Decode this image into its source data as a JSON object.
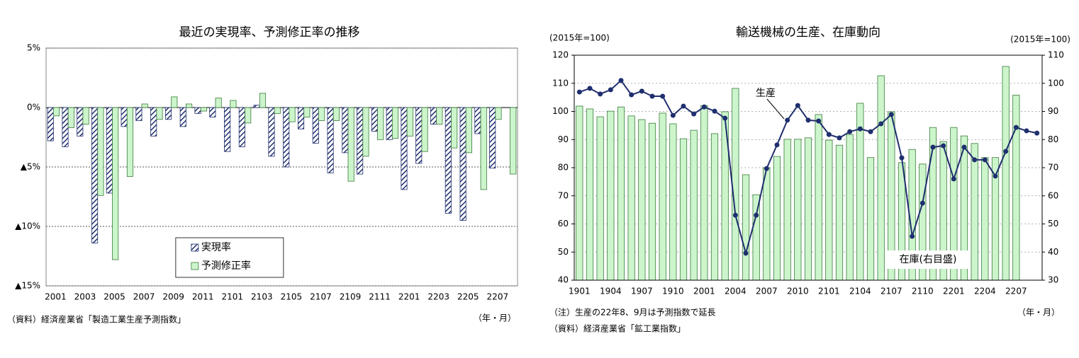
{
  "chart_data": [
    {
      "type": "bar",
      "title": "最近の実現率、予測修正率の推移",
      "categories": [
        "2001",
        null,
        "2003",
        null,
        "2005",
        null,
        "2007",
        null,
        "2009",
        null,
        "2011",
        null,
        "2101",
        null,
        "2103",
        null,
        "2105",
        null,
        "2107",
        null,
        "2109",
        null,
        "2111",
        null,
        "2201",
        null,
        "2203",
        null,
        "2205",
        null,
        "2207",
        null
      ],
      "series": [
        {
          "name": "実現率",
          "color": "#1f2f6e",
          "pattern": "hatch",
          "values": [
            -2.8,
            -3.3,
            -2.4,
            -11.4,
            -7.2,
            -1.6,
            -1.1,
            -2.4,
            -1.0,
            -1.6,
            -0.5,
            -0.8,
            -3.7,
            -3.3,
            0.2,
            -4.1,
            -5.0,
            -1.8,
            -3.0,
            -5.5,
            -3.8,
            -5.6,
            -2.0,
            -2.7,
            -6.9,
            -4.7,
            -1.4,
            -8.9,
            -9.5,
            -2.2,
            -5.1,
            null
          ]
        },
        {
          "name": "予測修正率",
          "color": "#ccf5cc",
          "values": [
            -0.7,
            -1.7,
            -1.4,
            -7.4,
            -12.8,
            -5.8,
            0.3,
            -1.0,
            0.9,
            0.3,
            -0.3,
            0.8,
            0.6,
            -1.3,
            1.2,
            -0.5,
            -1.2,
            -0.8,
            -1.1,
            -1.1,
            -6.2,
            -4.1,
            -2.7,
            -2.6,
            -2.4,
            -3.7,
            -1.4,
            -3.4,
            -3.8,
            -6.9,
            -1.0,
            -5.6
          ]
        }
      ],
      "ylim": [
        -15,
        5
      ],
      "yticks": [
        {
          "value": 5,
          "label": "5%"
        },
        {
          "value": 0,
          "label": "0%"
        },
        {
          "value": -5,
          "label": "▲5%"
        },
        {
          "value": -10,
          "label": "▲10%"
        },
        {
          "value": -15,
          "label": "▲15%"
        }
      ],
      "grid": true,
      "legend": "bottom-center",
      "source": "（資料）経済産業省「製造工業生産予測指数」",
      "x_unit": "（年・月）"
    },
    {
      "type": "combo",
      "title": "輸送機械の生産、在庫動向",
      "y_label": "(2015年=100)",
      "y2_label": "(2015年=100)",
      "categories": [
        "1901",
        null,
        null,
        "1904",
        null,
        null,
        "1907",
        null,
        null,
        "1910",
        null,
        null,
        "2001",
        null,
        null,
        "2004",
        null,
        null,
        "2007",
        null,
        null,
        "2010",
        null,
        null,
        "2101",
        null,
        null,
        "2104",
        null,
        null,
        "2107",
        null,
        null,
        "2110",
        null,
        null,
        "2201",
        null,
        null,
        "2204",
        null,
        null,
        "2207",
        null,
        null
      ],
      "series": [
        {
          "name": "在庫(右目盛)",
          "type": "bar",
          "axis": "y2",
          "color": "#ccf5cc",
          "values": [
            91.9,
            90.9,
            88.1,
            90.1,
            91.6,
            88.4,
            87.1,
            85.8,
            89.4,
            85.6,
            80.3,
            83.3,
            92.1,
            82.1,
            89.9,
            98.2,
            67.5,
            60.4,
            70.0,
            74.0,
            80.1,
            80.1,
            80.6,
            88.9,
            79.8,
            78.0,
            81.8,
            92.9,
            73.6,
            102.7,
            89.9,
            71.8,
            76.5,
            71.3,
            84.3,
            79.3,
            84.3,
            81.3,
            78.6,
            73.6,
            73.6,
            106.0,
            95.8,
            null,
            null
          ]
        },
        {
          "name": "生産",
          "type": "line",
          "color": "#1f2f6e",
          "values": [
            106.9,
            108.2,
            106.2,
            107.7,
            111.0,
            105.9,
            107.2,
            105.4,
            105.4,
            98.6,
            101.9,
            99.1,
            101.6,
            100.1,
            97.6,
            63.1,
            49.6,
            63.1,
            79.7,
            88.1,
            96.9,
            102.1,
            96.9,
            96.6,
            91.8,
            90.6,
            92.8,
            93.8,
            92.8,
            95.6,
            98.9,
            83.5,
            55.6,
            67.4,
            87.3,
            87.8,
            76.0,
            87.3,
            82.8,
            82.8,
            77.0,
            85.8,
            94.3,
            93.1,
            92.3
          ]
        }
      ],
      "ylim": [
        40,
        120
      ],
      "yticks": [
        40,
        50,
        60,
        70,
        80,
        90,
        100,
        110,
        120
      ],
      "y2lim": [
        30,
        110
      ],
      "y2ticks": [
        30,
        40,
        50,
        60,
        70,
        80,
        90,
        100,
        110
      ],
      "grid": true,
      "note": "（注）生産の22年8、9月は予測指数で延長",
      "source": "（資料）経済産業省「鉱工業指数」",
      "x_unit": "（年・月）"
    }
  ]
}
